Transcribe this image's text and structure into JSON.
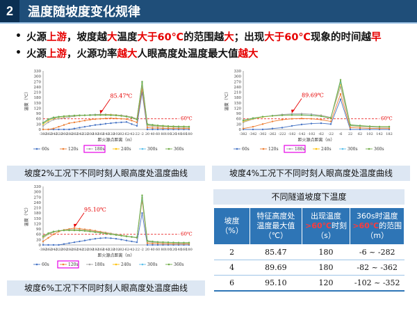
{
  "header": {
    "number": "2",
    "title": "温度随坡度变化规律"
  },
  "bullets": [
    {
      "parts": [
        {
          "t": "火源",
          "c": ""
        },
        {
          "t": "上游",
          "c": "red"
        },
        {
          "t": "，坡度越",
          "c": ""
        },
        {
          "t": "大",
          "c": "red"
        },
        {
          "t": "温度",
          "c": ""
        },
        {
          "t": "大于60℃",
          "c": "red"
        },
        {
          "t": "的范围越",
          "c": ""
        },
        {
          "t": "大",
          "c": "red"
        },
        {
          "t": "；出现",
          "c": ""
        },
        {
          "t": "大于60℃",
          "c": "red"
        },
        {
          "t": "现象的时间越",
          "c": ""
        },
        {
          "t": "早",
          "c": "red"
        }
      ]
    },
    {
      "parts": [
        {
          "t": "火源",
          "c": ""
        },
        {
          "t": "上游",
          "c": "red"
        },
        {
          "t": "，火源功率",
          "c": ""
        },
        {
          "t": "越大",
          "c": "red"
        },
        {
          "t": "人眼高度处温度最大值",
          "c": ""
        },
        {
          "t": "越大",
          "c": "red"
        }
      ]
    }
  ],
  "captions": {
    "c1": "坡度2%工况下不同时刻人眼高度处温度曲线",
    "c2": "坡度4%工况下不同时刻人眼高度处温度曲线",
    "c3": "坡度6%工况下不同时刻人眼高度处温度曲线"
  },
  "table": {
    "title": "不同隧道坡度下温度",
    "headers": [
      "坡度（%）",
      "特征高度处温度最大值（℃）",
      "出现温度>60℃时刻（s）",
      "360s时温度>60℃的范围（m）"
    ],
    "rows": [
      [
        "2",
        "85.47",
        "180",
        "-6 ~ -282"
      ],
      [
        "4",
        "89.69",
        "180",
        "-82 ~ -362"
      ],
      [
        "6",
        "95.10",
        "120",
        "-102 ~ -352"
      ]
    ]
  },
  "colors": {
    "s60": "#4472c4",
    "s120": "#ed7d31",
    "s180": "#a5a5a5",
    "s240": "#ffc000",
    "s300": "#5bc0eb",
    "s360": "#70ad47",
    "ref": "#e60000",
    "highlight": "#e600e6"
  },
  "chart_data": [
    {
      "type": "line",
      "title": "坡度2%工况下不同时刻人眼高度处温度曲线",
      "xlabel": "距火源点距离（m）",
      "ylabel": "温度（℃）",
      "ylim": [
        0,
        330
      ],
      "yticks": [
        0,
        30,
        60,
        90,
        120,
        150,
        180,
        210,
        240,
        270,
        300,
        330
      ],
      "xticks": [
        "-382",
        "-362",
        "-342",
        "-322",
        "-302",
        "-282",
        "-262",
        "-242",
        "-222",
        "-202",
        "-182",
        "-162",
        "-142",
        "-122",
        "-102",
        "-82",
        "-62",
        "-42",
        "-22",
        "-2",
        "20",
        "40",
        "60",
        "80",
        "100",
        "120",
        "140",
        "160",
        "180"
      ],
      "annotation": "85.47℃",
      "ref_label": "60℃",
      "ref_value": 60,
      "legend": [
        "60s",
        "120s",
        "180s",
        "240s",
        "300s",
        "360s"
      ],
      "highlight_legend": "180s",
      "series": [
        {
          "name": "60s",
          "values": [
            0,
            0,
            0,
            0,
            0,
            0,
            5,
            10,
            15,
            20,
            25,
            28,
            32,
            35,
            38,
            40,
            42,
            30,
            20,
            210,
            0,
            0,
            0,
            0,
            0,
            0,
            0,
            0,
            0
          ]
        },
        {
          "name": "120s",
          "values": [
            0,
            0,
            5,
            15,
            25,
            35,
            40,
            45,
            50,
            55,
            58,
            60,
            62,
            63,
            62,
            60,
            58,
            50,
            40,
            230,
            10,
            8,
            8,
            6,
            6,
            5,
            5,
            5,
            5
          ]
        },
        {
          "name": "180s",
          "values": [
            20,
            40,
            55,
            60,
            65,
            70,
            74,
            78,
            80,
            82,
            84,
            85,
            85,
            84,
            82,
            80,
            76,
            70,
            60,
            250,
            20,
            18,
            16,
            15,
            14,
            13,
            12,
            12,
            12
          ]
        },
        {
          "name": "240s",
          "values": [
            30,
            50,
            62,
            68,
            72,
            75,
            77,
            78,
            80,
            80,
            81,
            82,
            82,
            82,
            80,
            78,
            74,
            68,
            58,
            260,
            25,
            22,
            20,
            18,
            16,
            15,
            15,
            14,
            14
          ]
        },
        {
          "name": "300s",
          "values": [
            35,
            55,
            65,
            70,
            74,
            76,
            78,
            79,
            80,
            80,
            81,
            81,
            81,
            80,
            79,
            77,
            73,
            67,
            57,
            265,
            28,
            24,
            22,
            20,
            18,
            17,
            16,
            16,
            15
          ]
        },
        {
          "name": "360s",
          "values": [
            38,
            58,
            68,
            72,
            75,
            77,
            79,
            80,
            80,
            81,
            81,
            81,
            81,
            80,
            79,
            76,
            72,
            66,
            56,
            270,
            30,
            26,
            23,
            21,
            19,
            18,
            17,
            17,
            16
          ]
        }
      ]
    },
    {
      "type": "line",
      "title": "坡度4%工况下不同时刻人眼高度处温度曲线",
      "xlabel": "距火源点距离（m）",
      "ylabel": "温度（℃）",
      "ylim": [
        0,
        330
      ],
      "yticks": [
        0,
        30,
        60,
        90,
        120,
        150,
        180,
        210,
        240,
        270,
        300,
        330
      ],
      "xticks": [
        "-382",
        "-342",
        "-302",
        "-262",
        "-222",
        "-182",
        "-142",
        "-102",
        "-62",
        "-22",
        "-6",
        "22",
        "62",
        "102",
        "142",
        "182"
      ],
      "annotation": "89.69℃",
      "ref_label": "60℃",
      "ref_value": 60,
      "legend": [
        "60s",
        "120s",
        "180s",
        "240s",
        "300s",
        "360s"
      ],
      "highlight_legend": "180s",
      "series": [
        {
          "name": "60s",
          "values": [
            0,
            0,
            0,
            5,
            10,
            20,
            28,
            33,
            35,
            30,
            170,
            0,
            0,
            0,
            0,
            0
          ]
        },
        {
          "name": "120s",
          "values": [
            5,
            15,
            30,
            45,
            55,
            60,
            62,
            60,
            55,
            45,
            200,
            10,
            8,
            6,
            5,
            5
          ]
        },
        {
          "name": "180s",
          "values": [
            40,
            58,
            70,
            78,
            84,
            88,
            89,
            86,
            80,
            68,
            240,
            20,
            16,
            14,
            12,
            12
          ]
        },
        {
          "name": "240s",
          "values": [
            45,
            60,
            70,
            76,
            80,
            82,
            82,
            80,
            76,
            65,
            260,
            22,
            18,
            16,
            14,
            14
          ]
        },
        {
          "name": "300s",
          "values": [
            50,
            62,
            72,
            77,
            80,
            82,
            82,
            80,
            75,
            64,
            270,
            24,
            20,
            17,
            15,
            15
          ]
        },
        {
          "name": "360s",
          "values": [
            52,
            64,
            72,
            77,
            80,
            81,
            81,
            79,
            74,
            63,
            280,
            26,
            22,
            18,
            16,
            16
          ]
        }
      ]
    },
    {
      "type": "line",
      "title": "坡度6%工况下不同时刻人眼高度处温度曲线",
      "xlabel": "距火源点距离（m）",
      "ylabel": "温度（℃）",
      "ylim": [
        0,
        330
      ],
      "yticks": [
        0,
        30,
        60,
        90,
        120,
        150,
        180,
        210,
        240,
        270,
        300,
        330
      ],
      "xticks": [
        "-382",
        "-362",
        "-342",
        "-322",
        "-302",
        "-282",
        "-262",
        "-242",
        "-222",
        "-202",
        "-182",
        "-162",
        "-142",
        "-122",
        "-102",
        "-82",
        "-62",
        "-42",
        "-22",
        "-2",
        "20",
        "40",
        "60",
        "80",
        "100",
        "120",
        "140",
        "160",
        "180"
      ],
      "annotation": "95.10℃",
      "ref_label": "60℃",
      "ref_value": 60,
      "legend": [
        "60s",
        "120s",
        "180s",
        "240s",
        "300s",
        "360s"
      ],
      "highlight_legend": "120s",
      "series": [
        {
          "name": "60s",
          "values": [
            0,
            0,
            0,
            0,
            5,
            10,
            15,
            20,
            25,
            30,
            35,
            38,
            40,
            38,
            35,
            30,
            25,
            20,
            15,
            180,
            0,
            0,
            0,
            0,
            0,
            0,
            0,
            0,
            0
          ]
        },
        {
          "name": "120s",
          "values": [
            20,
            40,
            60,
            75,
            85,
            90,
            95,
            92,
            88,
            85,
            80,
            75,
            70,
            65,
            60,
            55,
            50,
            45,
            40,
            250,
            10,
            8,
            8,
            6,
            6,
            5,
            5,
            5,
            5
          ]
        },
        {
          "name": "180s",
          "values": [
            40,
            60,
            72,
            80,
            84,
            86,
            86,
            85,
            83,
            80,
            76,
            72,
            68,
            64,
            60,
            55,
            50,
            45,
            40,
            260,
            18,
            15,
            14,
            12,
            12,
            11,
            10,
            10,
            10
          ]
        },
        {
          "name": "240s",
          "values": [
            45,
            62,
            74,
            80,
            83,
            84,
            84,
            83,
            81,
            78,
            74,
            70,
            66,
            62,
            58,
            54,
            50,
            46,
            42,
            265,
            20,
            17,
            15,
            14,
            13,
            12,
            12,
            11,
            11
          ]
        },
        {
          "name": "300s",
          "values": [
            48,
            64,
            75,
            80,
            82,
            83,
            83,
            82,
            80,
            77,
            73,
            69,
            65,
            61,
            57,
            53,
            49,
            46,
            42,
            270,
            22,
            18,
            16,
            15,
            14,
            13,
            12,
            12,
            12
          ]
        },
        {
          "name": "360s",
          "values": [
            50,
            66,
            76,
            80,
            82,
            82,
            82,
            81,
            79,
            76,
            72,
            68,
            64,
            60,
            56,
            52,
            48,
            45,
            42,
            280,
            24,
            20,
            17,
            16,
            15,
            14,
            13,
            13,
            13
          ]
        }
      ]
    }
  ]
}
